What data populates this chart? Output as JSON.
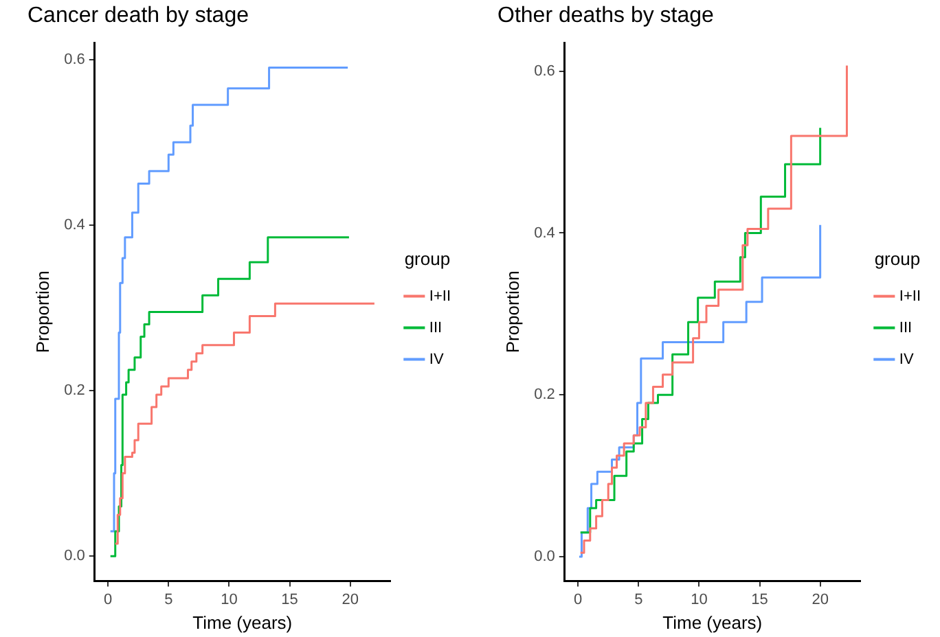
{
  "chart_data": [
    {
      "type": "step",
      "title": "Cancer death by stage",
      "xlabel": "Time (years)",
      "ylabel": "Proportion",
      "legend_title": "group",
      "legend": "right",
      "grid": false,
      "xlim": [
        -1.1,
        23.3
      ],
      "xticks": [
        0,
        5,
        10,
        15,
        20
      ],
      "ylim": [
        -0.03,
        0.62
      ],
      "yticks": [
        {
          "value": 0,
          "label": "0.0"
        },
        {
          "value": 0.2,
          "label": "0.2"
        },
        {
          "value": 0.4,
          "label": "0.4"
        },
        {
          "value": 0.6,
          "label": "0.6"
        }
      ],
      "series": [
        {
          "name": "I+II",
          "color": "#f8766d",
          "x": [
            0.6,
            0.8,
            1.0,
            1.2,
            1.4,
            2.0,
            2.2,
            2.5,
            3.6,
            4.0,
            4.4,
            5.0,
            6.6,
            6.9,
            7.3,
            7.8,
            10.4,
            11.7,
            13.8,
            22
          ],
          "values": [
            0.015,
            0.05,
            0.07,
            0.1,
            0.12,
            0.125,
            0.14,
            0.16,
            0.18,
            0.195,
            0.205,
            0.215,
            0.225,
            0.235,
            0.245,
            0.255,
            0.27,
            0.29,
            0.305,
            0.305
          ]
        },
        {
          "name": "III",
          "color": "#00ba38",
          "x": [
            0.2,
            0.6,
            0.9,
            1.1,
            1.2,
            1.5,
            1.7,
            2.2,
            2.7,
            3.0,
            3.4,
            7.8,
            9.1,
            11.7,
            13.2,
            19.9
          ],
          "values": [
            0,
            0.03,
            0.06,
            0.11,
            0.195,
            0.21,
            0.225,
            0.24,
            0.265,
            0.28,
            0.295,
            0.315,
            0.335,
            0.355,
            0.385,
            0.385
          ]
        },
        {
          "name": "IV",
          "color": "#619cff",
          "x": [
            0.2,
            0.5,
            0.6,
            0.9,
            1.0,
            1.2,
            1.4,
            2.0,
            2.5,
            3.4,
            5.0,
            5.4,
            6.8,
            7.0,
            9.9,
            13.3,
            19.8
          ],
          "values": [
            0.03,
            0.1,
            0.19,
            0.27,
            0.33,
            0.36,
            0.385,
            0.415,
            0.45,
            0.465,
            0.485,
            0.5,
            0.52,
            0.545,
            0.565,
            0.59,
            0.59
          ]
        }
      ]
    },
    {
      "type": "step",
      "title": "Other deaths by stage",
      "xlabel": "Time (years)",
      "ylabel": "Proportion",
      "legend_title": "group",
      "legend": "right",
      "grid": false,
      "xlim": [
        -1.1,
        23.3
      ],
      "xticks": [
        0,
        5,
        10,
        15,
        20
      ],
      "ylim": [
        -0.03,
        0.635
      ],
      "yticks": [
        {
          "value": 0,
          "label": "0.0"
        },
        {
          "value": 0.2,
          "label": "0.2"
        },
        {
          "value": 0.4,
          "label": "0.4"
        },
        {
          "value": 0.6,
          "label": "0.6"
        }
      ],
      "series": [
        {
          "name": "I+II",
          "color": "#f8766d",
          "x": [
            0.2,
            0.5,
            1.0,
            1.5,
            2.0,
            2.5,
            2.8,
            3.2,
            3.8,
            4.6,
            5.1,
            5.6,
            6.2,
            7.0,
            7.8,
            9.5,
            10.0,
            10.6,
            11.6,
            13.6,
            14.0,
            15.7,
            17.6,
            22.2
          ],
          "values": [
            0.005,
            0.02,
            0.035,
            0.05,
            0.07,
            0.09,
            0.11,
            0.125,
            0.14,
            0.15,
            0.16,
            0.19,
            0.21,
            0.225,
            0.24,
            0.27,
            0.29,
            0.31,
            0.33,
            0.385,
            0.405,
            0.43,
            0.52,
            0.607
          ]
        },
        {
          "name": "III",
          "color": "#00ba38",
          "x": [
            0.2,
            1.0,
            1.5,
            3.0,
            4.0,
            4.6,
            5.3,
            5.8,
            6.6,
            7.8,
            9.1,
            9.9,
            11.3,
            13.4,
            13.8,
            15.1,
            17.1,
            20.0
          ],
          "values": [
            0.03,
            0.06,
            0.07,
            0.1,
            0.13,
            0.14,
            0.17,
            0.19,
            0.2,
            0.25,
            0.29,
            0.32,
            0.34,
            0.37,
            0.4,
            0.445,
            0.485,
            0.53
          ]
        },
        {
          "name": "IV",
          "color": "#619cff",
          "x": [
            0.1,
            0.3,
            0.8,
            1.1,
            1.6,
            2.8,
            3.4,
            4.6,
            4.9,
            5.2,
            7.0,
            12.0,
            13.9,
            15.2,
            20.0
          ],
          "values": [
            0,
            0.03,
            0.06,
            0.09,
            0.105,
            0.12,
            0.135,
            0.15,
            0.19,
            0.245,
            0.265,
            0.29,
            0.315,
            0.345,
            0.41
          ]
        }
      ]
    }
  ]
}
